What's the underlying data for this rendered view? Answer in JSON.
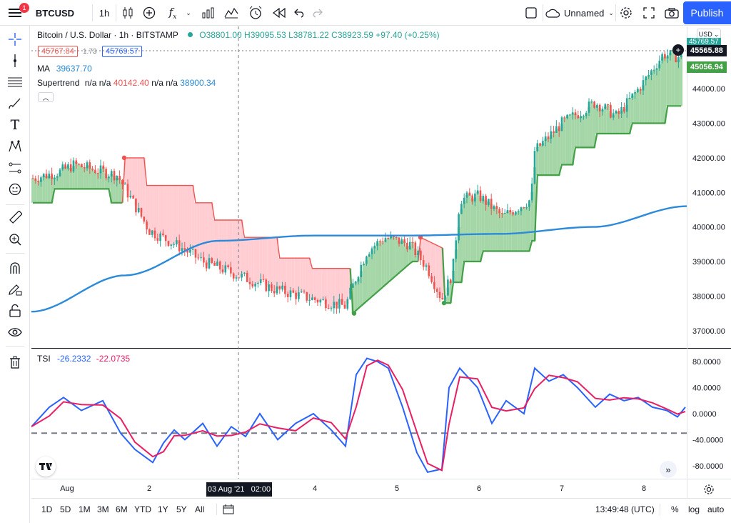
{
  "topbar": {
    "notification_count": "1",
    "symbol": "BTCUSD",
    "interval": "1h",
    "layout_name": "Unnamed",
    "publish_label": "Publish"
  },
  "legend": {
    "title": "Bitcoin / U.S. Dollar · 1h · BITSTAMP",
    "open": "O38801.00",
    "high": "H39095.53",
    "low": "L38781.22",
    "close": "C38923.59",
    "change": "+97.40 (+0.25%)",
    "bid": "45767.84",
    "spread": "1.73",
    "ask": "45769.57",
    "ma_label": "MA",
    "ma_value": "39637.70",
    "st_label": "Supertrend",
    "st_na1": "n/a",
    "st_na2": "n/a",
    "st_val1": "40142.40",
    "st_na3": "n/a",
    "st_na4": "n/a",
    "st_val2": "38900.34",
    "tsi_label": "TSI",
    "tsi_val1": "-26.2332",
    "tsi_val2": "-22.0735"
  },
  "price_scale": {
    "currency": "USD",
    "last_price": "45565.88",
    "supertrend_price": "45056.94",
    "hidden_top_label": "45769.57",
    "ticks": [
      "44000.00",
      "43000.00",
      "42000.00",
      "41000.00",
      "40000.00",
      "39000.00",
      "38000.00",
      "37000.00"
    ]
  },
  "tsi_scale": {
    "ticks": [
      "80.0000",
      "40.0000",
      "0.0000",
      "-40.0000",
      "-80.0000"
    ]
  },
  "time_axis": {
    "ticks": [
      "Aug",
      "2",
      "4",
      "5",
      "6",
      "7",
      "8"
    ],
    "crosshair_label": "03 Aug '21   02:00"
  },
  "bottombar": {
    "ranges": [
      "1D",
      "5D",
      "1M",
      "3M",
      "6M",
      "YTD",
      "1Y",
      "5Y",
      "All"
    ],
    "clock": "13:49:48 (UTC)",
    "percent_label": "%",
    "log_label": "log",
    "auto_label": "auto"
  },
  "colors": {
    "up": "#26a69a",
    "down": "#ef5350",
    "ma": "#2b8ad9",
    "supertrend_up": "#43a047",
    "supertrend_down": "#ef5350",
    "tsi_line": "#2962ff",
    "tsi_signal": "#e91e63",
    "accent": "#2962ff"
  },
  "chart_data": {
    "type": "line",
    "main": {
      "x": [
        "Aug 1 00:00",
        "Aug 2 00:00",
        "Aug 3 00:00",
        "Aug 4 00:00",
        "Aug 5 00:00",
        "Aug 6 00:00",
        "Aug 7 00:00",
        "Aug 8 00:00"
      ],
      "close": [
        41400,
        39500,
        38400,
        37900,
        39700,
        40800,
        43300,
        44800
      ],
      "ma": [
        37550,
        38600,
        39600,
        39750,
        39750,
        39800,
        40000,
        40600
      ],
      "ylim": [
        36500,
        45800
      ]
    },
    "tsi": {
      "x": [
        "Aug 1 00:00",
        "Aug 2 00:00",
        "Aug 3 00:00",
        "Aug 4 00:00",
        "Aug 5 00:00",
        "Aug 6 00:00",
        "Aug 7 00:00",
        "Aug 8 00:00"
      ],
      "tsi": [
        -20,
        -60,
        -50,
        -20,
        80,
        60,
        50,
        10
      ],
      "signal": [
        -25,
        -50,
        -45,
        -25,
        70,
        55,
        45,
        15
      ],
      "ylim": [
        -100,
        100
      ],
      "reference_line": -30
    }
  }
}
